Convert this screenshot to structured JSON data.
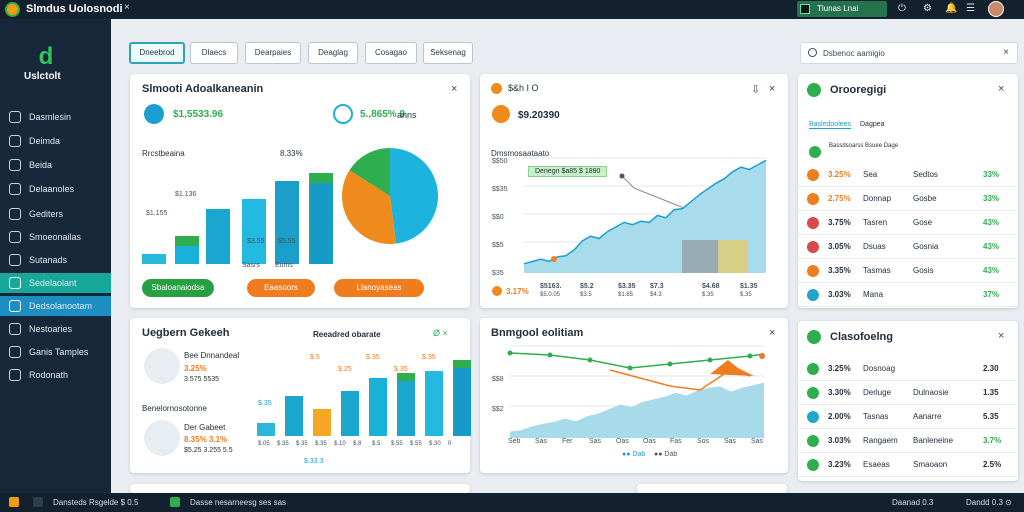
{
  "app": {
    "title": "Slmdus Uolosnodi",
    "close": "×"
  },
  "topbar": {
    "user_label": "Tlunas Lnai",
    "icons": [
      "power-icon",
      "gear-icon",
      "bell-icon",
      "settings-icon"
    ]
  },
  "sidebar": {
    "brand_icon": "d",
    "brand": "Uslctolt",
    "items": [
      {
        "label": "Dasmlesin"
      },
      {
        "label": "Deimda"
      },
      {
        "label": "Beida"
      },
      {
        "label": "Delaanoles"
      },
      {
        "label": "Gediters"
      },
      {
        "label": "Smoeonailas"
      },
      {
        "label": "Sutanads"
      },
      {
        "label": "Sedelaolant"
      },
      {
        "label": "Dedsolanootam"
      },
      {
        "label": "Nestoaries"
      },
      {
        "label": "Ganis Tamples"
      },
      {
        "label": "Rodonath"
      }
    ]
  },
  "tabs": [
    "Dneebrod",
    "Dlaecs",
    "Dearpaies",
    "Deaglag",
    "Cosagao",
    "Seksenag"
  ],
  "search": {
    "placeholder": "Dsbenoc aamigio",
    "clear": "×"
  },
  "panel1": {
    "title": "Slmooti Adoalkaneanin",
    "close": "×",
    "kpi1_value": "$1,5533.96",
    "kpi2_value": "5.,865% 9",
    "kpi2_suffix": "anns",
    "chart_title": "Rrcstbeaina",
    "chart_right": "8.33%",
    "bar_labels": [
      "$1.155",
      "$1.136",
      "$3.55",
      "$5.55"
    ],
    "bottom_labels": [
      "Sasrs",
      "Eums"
    ],
    "buttons": [
      "Sbaloanaiodsa",
      "Eaasoors",
      "Llanoyaseas"
    ],
    "button_colors": [
      "#27a043",
      "#ef7d1f",
      "#ef7d1f"
    ]
  },
  "panel2": {
    "header": "$&h  I O",
    "value": "$9.20390",
    "chart_title": "Dmsmosaataato",
    "tooltip": "Denegn $a85 $ 1890",
    "y_labels": [
      "$$50",
      "$$35",
      "$$0",
      "$$5",
      "$35"
    ],
    "footer_pct": "3.17%",
    "footer_labels": [
      "$5163.",
      "$5.2",
      "$3.35",
      "$7.3",
      "$4.68",
      "$1.35"
    ],
    "footer_sub": [
      "$5.0.05",
      "$3.5",
      "$1.85",
      "$4.3",
      "$.35",
      "$.35"
    ]
  },
  "panel3": {
    "title": "Uegbern Gekeeh",
    "right_title": "Reeadred obarate",
    "right_ok": "Ø ×",
    "close": "×",
    "item1_title": "Bee Dnnandeal",
    "item1_pct": "3.25%",
    "item1_sub": "3.575 5535",
    "mid_label": "Benelornosotonne",
    "item2_title": "Der Gabeet",
    "item2_pct": "8.35% 3.1%",
    "item2_sub": "$5.25 3.255 5.5",
    "bar_tops": [
      "$.5",
      "$.25",
      "$.35",
      "$.35",
      "$.35"
    ],
    "x_labels": [
      "$.05",
      "$.35",
      "$.35",
      "$.35",
      "$.10",
      "$.8",
      "$.5",
      "$.55",
      "$.55",
      "$.30",
      "0"
    ],
    "bottom_label": "$.33.3",
    "y_label": "$.35"
  },
  "panel4": {
    "title": "Bnmgool eolitiam",
    "close": "×",
    "x_labels": [
      "Seb",
      "Sas",
      "Fer",
      "Sas",
      "Oas",
      "Oas",
      "Fas",
      "Sos",
      "Sas",
      "Sas"
    ],
    "legend": [
      "●● Dab",
      "●● Dab"
    ],
    "y_labels": [
      "$$8",
      "$$2"
    ]
  },
  "right1": {
    "title": "Orooregigi",
    "close": "×",
    "sub_tabs": [
      "Basledoolees",
      "Dagpea"
    ],
    "header_row": [
      "Bassdsoarss",
      "Bsuee",
      "Dage"
    ],
    "rows": [
      {
        "icon_color": "#ef7d1f",
        "pct": "3.25%",
        "c2": "Sea",
        "c3": "Sedtos",
        "val": "33%",
        "val_color": "#2fae4f",
        "pct_color": "#ef7d1f"
      },
      {
        "icon_color": "#ef7d1f",
        "pct": "2.75%",
        "c2": "Donnap",
        "c3": "Gosbe",
        "val": "33%",
        "val_color": "#2fae4f",
        "pct_color": "#ef7d1f"
      },
      {
        "icon_color": "#d9484a",
        "pct": "3.75%",
        "c2": "Tasren",
        "c3": "Gose",
        "val": "43%",
        "val_color": "#2fae4f",
        "pct_color": "#1e2d3a"
      },
      {
        "icon_color": "#d9484a",
        "pct": "3.05%",
        "c2": "Dsuas",
        "c3": "Gosnia",
        "val": "43%",
        "val_color": "#2fae4f",
        "pct_color": "#1e2d3a"
      },
      {
        "icon_color": "#ef7d1f",
        "pct": "3.35%",
        "c2": "Tasmas",
        "c3": "Gosis",
        "val": "43%",
        "val_color": "#2fae4f",
        "pct_color": "#1e2d3a"
      },
      {
        "icon_color": "#22a5c9",
        "pct": "3.03%",
        "c2": "Mana",
        "c3": "",
        "val": "37%",
        "val_color": "#2fae4f",
        "pct_color": "#1e2d3a"
      }
    ]
  },
  "right2": {
    "title": "Clasofoelng",
    "close": "×",
    "rows": [
      {
        "icon_color": "#2fae4f",
        "pct": "3.25%",
        "c2": "Dosnoag",
        "c3": "",
        "val": "2.30",
        "val_color": "#1e2d3a"
      },
      {
        "icon_color": "#2fae4f",
        "pct": "3.30%",
        "c2": "Derluge",
        "c3": "Dulnaosie",
        "val": "1.35",
        "val_color": "#1e2d3a"
      },
      {
        "icon_color": "#22a5c9",
        "pct": "2.00%",
        "c2": "Tasnas",
        "c3": "Aanarre",
        "val": "5.35",
        "val_color": "#1e2d3a"
      },
      {
        "icon_color": "#2fae4f",
        "pct": "3.03%",
        "c2": "Rangaem",
        "c3": "Banleneine",
        "val": "3.7%",
        "val_color": "#2fae4f"
      },
      {
        "icon_color": "#2fae4f",
        "pct": "3.23%",
        "c2": "Esaeas",
        "c3": "Smaoaon",
        "val": "2.5%",
        "val_color": "#1e2d3a"
      }
    ]
  },
  "bottombar": {
    "left": "Dansteds Rsgelde $ 0.5",
    "mid": "Dasse nesarneesg ses sas",
    "right1": "Daanad 0.3",
    "right2": "Dandd 0.3 ⊙"
  },
  "chart_data": [
    {
      "type": "bar",
      "title": "Rrcstbeaina",
      "categories": [
        "1",
        "2",
        "3",
        "4",
        "5",
        "6"
      ],
      "values": [
        10,
        28,
        55,
        65,
        83,
        91
      ],
      "ylim": [
        0,
        100
      ]
    },
    {
      "type": "pie",
      "values": [
        48,
        36,
        16
      ],
      "colors": [
        "#1db3dc",
        "#ef8a1d",
        "#2fae4f"
      ]
    },
    {
      "type": "area",
      "title": "Dmsmosaataato",
      "values": [
        8,
        10,
        12,
        10,
        14,
        15,
        20,
        28,
        32,
        30,
        36,
        40,
        44,
        42,
        45,
        44,
        50,
        48,
        55,
        56,
        62,
        68,
        73,
        78,
        82,
        88,
        92,
        90,
        94,
        98
      ],
      "ylim": [
        0,
        100
      ]
    },
    {
      "type": "bar",
      "title": "Reeadred obarate",
      "values": [
        15,
        45,
        30,
        50,
        65,
        70,
        72,
        85
      ],
      "ylim": [
        0,
        100
      ]
    },
    {
      "type": "area",
      "title": "Bnmgool eolitiam",
      "values": [
        10,
        12,
        18,
        22,
        25,
        30,
        26,
        34,
        38,
        45,
        52,
        48,
        56,
        60,
        64,
        70,
        66,
        74,
        78,
        80,
        72,
        78,
        82,
        86
      ],
      "ylim": [
        0,
        100
      ]
    }
  ]
}
